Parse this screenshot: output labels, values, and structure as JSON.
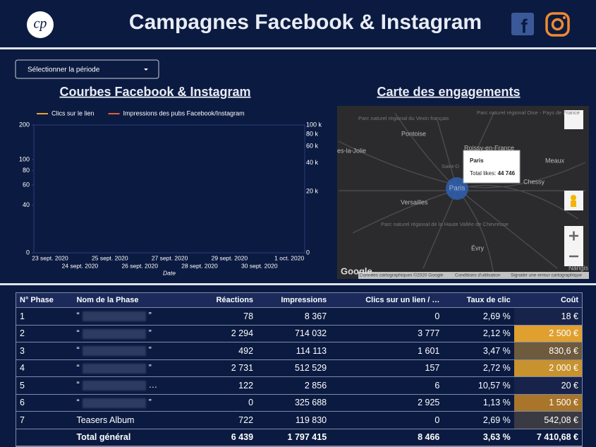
{
  "header": {
    "logo": "cp",
    "title": "Campagnes Facebook & Instagram",
    "facebook": "f"
  },
  "filter": {
    "label": "Sélectionner la période"
  },
  "chart_heading": "Courbes Facebook & Instagram",
  "chart_data": {
    "type": "line",
    "x_label": "Date",
    "categories": [
      "23 sept. 2020",
      "24 sept. 2020",
      "25 sept. 2020",
      "26 sept. 2020",
      "27 sept. 2020",
      "28 sept. 2020",
      "29 sept. 2020",
      "30 sept. 2020",
      "1 oct. 2020"
    ],
    "series": [
      {
        "name": "Clics sur le lien",
        "color": "#e8a33c",
        "values": [
          null,
          null,
          null,
          null,
          null,
          null,
          null,
          null,
          null
        ]
      },
      {
        "name": "Impressions des pubs Facebook/Instagram",
        "color": "#e0613a",
        "axis": "y2",
        "values": [
          null,
          null,
          null,
          null,
          null,
          null,
          null,
          null,
          null
        ]
      }
    ],
    "ylim": [
      0,
      200
    ],
    "yticks": [
      0,
      40,
      60,
      80,
      100,
      200
    ],
    "y_log": true,
    "y2lim": [
      0,
      100000
    ],
    "y2ticks": [
      {
        "value": 0,
        "label": "0"
      },
      {
        "value": 20000,
        "label": "20 k"
      },
      {
        "value": 40000,
        "label": "40 k"
      },
      {
        "value": 60000,
        "label": "60 k"
      },
      {
        "value": 80000,
        "label": "80 k"
      },
      {
        "value": 100000,
        "label": "100 k"
      }
    ],
    "y2_log": true,
    "legend": "top-left"
  },
  "map": {
    "heading": "Carte des engagements",
    "places": [
      "Parc naturel régional du Vexin français",
      "Pontoise",
      "Roissy-en-France",
      "Parc naturel régional Oise - Pays de France",
      "Meaux",
      "es-la-Jolie",
      "Saint-D",
      "Versailles",
      "Chessy",
      "Parc naturel régional de la Haute Vallée de Chevreuse",
      "Évry",
      "Nangis"
    ],
    "tooltip": {
      "title": "Paris",
      "label": "Total likes:",
      "value": "44 746"
    },
    "bubble": "Paris",
    "footer": [
      "Google",
      "Données cartographiques ©2020 Google",
      "Conditions d'utilisation",
      "Signaler une erreur cartographique"
    ]
  },
  "table": {
    "headers": [
      "N° Phase",
      "Nom de la Phase",
      "Réactions",
      "Impressions",
      "Clics sur un lien / …",
      "Taux de clic",
      "Coût"
    ],
    "rows": [
      [
        "1",
        {
          "before": "“",
          "after": "”"
        },
        "78",
        "8 367",
        "0",
        "2,69 %",
        "18 €"
      ],
      [
        "2",
        {
          "before": "“",
          "after": "”"
        },
        "2 294",
        "714 032",
        "3 777",
        "2,12 %",
        "2 500 €"
      ],
      [
        "3",
        {
          "before": "“",
          "after": "”"
        },
        "492",
        "114 113",
        "1 601",
        "3,47 %",
        "830,6 €"
      ],
      [
        "4",
        {
          "before": "“",
          "after": "”"
        },
        "2 731",
        "512 529",
        "157",
        "2,72 %",
        "2 000 €"
      ],
      [
        "5",
        {
          "before": "“",
          "after": "…"
        },
        "122",
        "2 856",
        "6",
        "10,57 %",
        "20 €"
      ],
      [
        "6",
        {
          "before": "“",
          "after": "”"
        },
        "0",
        "325 688",
        "2 925",
        "1,13 %",
        "1 500 €"
      ],
      [
        "7",
        "Teasers Album",
        "722",
        "119 830",
        "0",
        "2,69 %",
        "542,08 €"
      ]
    ],
    "cost_colors": [
      "#17234a",
      "#e0a030",
      "#6e5a3c",
      "#c8922e",
      "#17234a",
      "#a8752a",
      "#3a3a42"
    ],
    "total": [
      "",
      "Total général",
      "6 439",
      "1 797 415",
      "8 466",
      "3,63 %",
      "7 410,68 €"
    ]
  }
}
